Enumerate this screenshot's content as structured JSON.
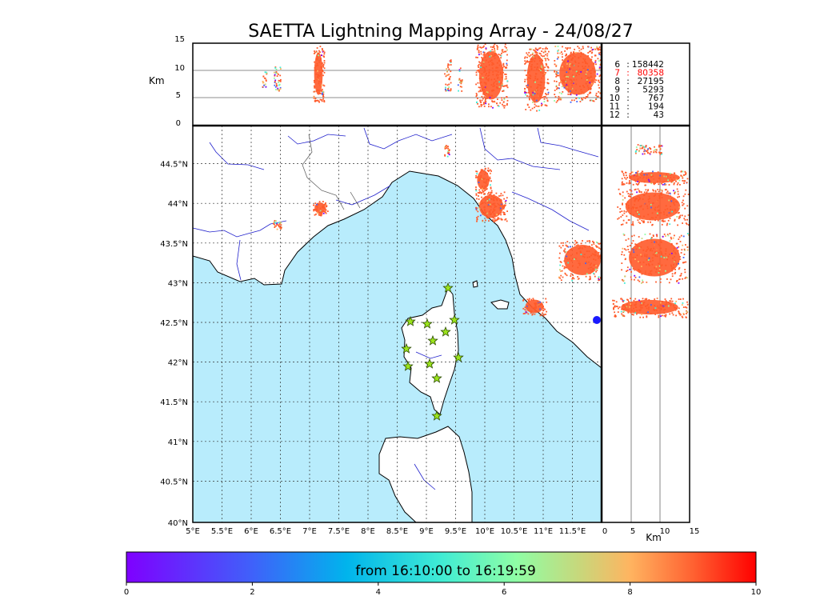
{
  "title": "SAETTA Lightning Mapping Array - 24/08/27",
  "colors": {
    "sea": "#b8ecfc",
    "land": "#ffffff",
    "river": "#2020cc",
    "strike_main": "#ff5a2a",
    "station_star": "#9be31c",
    "highlight_count": "#ff0000"
  },
  "altitude_panel": {
    "unit": "Km",
    "y_ticks": [
      "0",
      "5",
      "10",
      "15"
    ]
  },
  "side_panel": {
    "unit": "Km",
    "x_ticks": [
      "0",
      "5",
      "10",
      "15"
    ]
  },
  "map": {
    "lon_ticks": [
      "5°E",
      "5.5°E",
      "6°E",
      "6.5°E",
      "7°E",
      "7.5°E",
      "8°E",
      "8.5°E",
      "9°E",
      "9.5°E",
      "10°E",
      "10.5°E",
      "11°E",
      "11.5°E"
    ],
    "lat_ticks": [
      "40°N",
      "40.5°N",
      "41°N",
      "41.5°N",
      "42°N",
      "42.5°N",
      "43°N",
      "43.5°N",
      "44°N",
      "44.5°N"
    ]
  },
  "stats": [
    {
      "num": "6",
      "count": "158442",
      "highlight": false
    },
    {
      "num": "7",
      "count": "80358",
      "highlight": true
    },
    {
      "num": "8",
      "count": "27195",
      "highlight": false
    },
    {
      "num": "9",
      "count": "5293",
      "highlight": false
    },
    {
      "num": "10",
      "count": "767",
      "highlight": false
    },
    {
      "num": "11",
      "count": "194",
      "highlight": false
    },
    {
      "num": "12",
      "count": "43",
      "highlight": false
    }
  ],
  "colorbar": {
    "label": "from 16:10:00 to 16:19:59",
    "ticks": [
      "0",
      "2",
      "4",
      "6",
      "8",
      "10"
    ],
    "range": [
      0,
      10
    ]
  }
}
